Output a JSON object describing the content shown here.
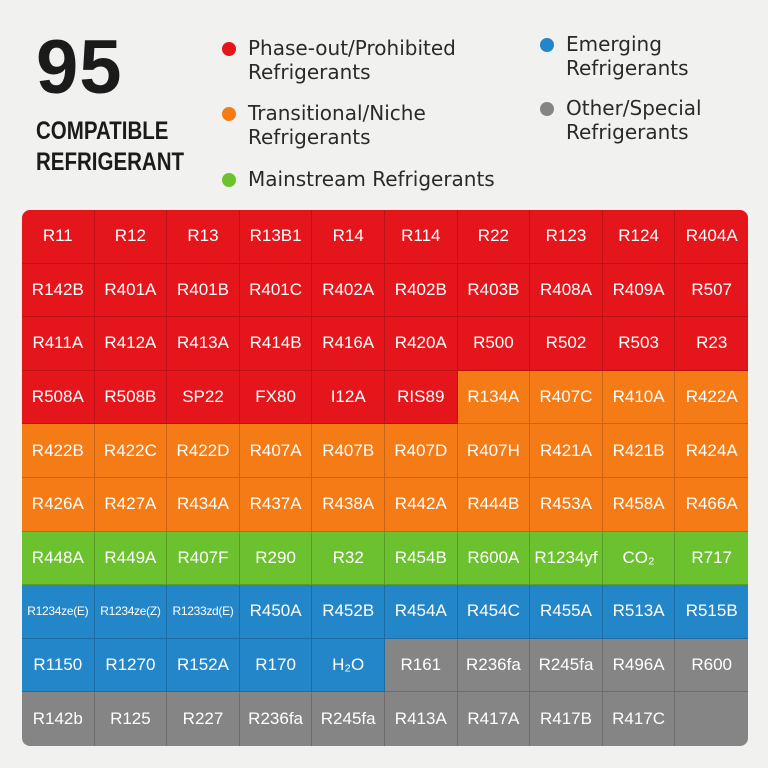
{
  "header": {
    "count": "95",
    "subtitle_line1": "COMPATIBLE",
    "subtitle_line2": "REFRIGERANT"
  },
  "colors": {
    "phaseout": "#e4161c",
    "transitional": "#f47b16",
    "mainstream": "#6cc12f",
    "emerging": "#2386c9",
    "other": "#858585"
  },
  "legend": [
    {
      "category": "phaseout",
      "label_line1": "Phase-out/Prohibited",
      "label_line2": "Refrigerants"
    },
    {
      "category": "transitional",
      "label_line1": "Transitional/Niche",
      "label_line2": "Refrigerants"
    },
    {
      "category": "mainstream",
      "label_line1": "Mainstream Refrigerants",
      "label_line2": ""
    },
    {
      "category": "emerging",
      "label_line1": "Emerging",
      "label_line2": "Refrigerants"
    },
    {
      "category": "other",
      "label_line1": "Other/Special",
      "label_line2": "Refrigerants"
    }
  ],
  "rows": [
    [
      {
        "name": "R11",
        "category": "phaseout"
      },
      {
        "name": "R12",
        "category": "phaseout"
      },
      {
        "name": "R13",
        "category": "phaseout"
      },
      {
        "name": "R13B1",
        "category": "phaseout"
      },
      {
        "name": "R14",
        "category": "phaseout"
      },
      {
        "name": "R114",
        "category": "phaseout"
      },
      {
        "name": "R22",
        "category": "phaseout"
      },
      {
        "name": "R123",
        "category": "phaseout"
      },
      {
        "name": "R124",
        "category": "phaseout"
      },
      {
        "name": "R404A",
        "category": "phaseout"
      }
    ],
    [
      {
        "name": "R142B",
        "category": "phaseout"
      },
      {
        "name": "R401A",
        "category": "phaseout"
      },
      {
        "name": "R401B",
        "category": "phaseout"
      },
      {
        "name": "R401C",
        "category": "phaseout"
      },
      {
        "name": "R402A",
        "category": "phaseout"
      },
      {
        "name": "R402B",
        "category": "phaseout"
      },
      {
        "name": "R403B",
        "category": "phaseout"
      },
      {
        "name": "R408A",
        "category": "phaseout"
      },
      {
        "name": "R409A",
        "category": "phaseout"
      },
      {
        "name": "R507",
        "category": "phaseout"
      }
    ],
    [
      {
        "name": "R411A",
        "category": "phaseout"
      },
      {
        "name": "R412A",
        "category": "phaseout"
      },
      {
        "name": "R413A",
        "category": "phaseout"
      },
      {
        "name": "R414B",
        "category": "phaseout"
      },
      {
        "name": "R416A",
        "category": "phaseout"
      },
      {
        "name": "R420A",
        "category": "phaseout"
      },
      {
        "name": "R500",
        "category": "phaseout"
      },
      {
        "name": "R502",
        "category": "phaseout"
      },
      {
        "name": "R503",
        "category": "phaseout"
      },
      {
        "name": "R23",
        "category": "phaseout"
      }
    ],
    [
      {
        "name": "R508A",
        "category": "phaseout"
      },
      {
        "name": "R508B",
        "category": "phaseout"
      },
      {
        "name": "SP22",
        "category": "phaseout"
      },
      {
        "name": "FX80",
        "category": "phaseout"
      },
      {
        "name": "I12A",
        "category": "phaseout"
      },
      {
        "name": "RIS89",
        "category": "phaseout"
      },
      {
        "name": "R134A",
        "category": "transitional"
      },
      {
        "name": "R407C",
        "category": "transitional"
      },
      {
        "name": "R410A",
        "category": "transitional"
      },
      {
        "name": "R422A",
        "category": "transitional"
      }
    ],
    [
      {
        "name": "R422B",
        "category": "transitional"
      },
      {
        "name": "R422C",
        "category": "transitional"
      },
      {
        "name": "R422D",
        "category": "transitional"
      },
      {
        "name": "R407A",
        "category": "transitional"
      },
      {
        "name": "R407B",
        "category": "transitional"
      },
      {
        "name": "R407D",
        "category": "transitional"
      },
      {
        "name": "R407H",
        "category": "transitional"
      },
      {
        "name": "R421A",
        "category": "transitional"
      },
      {
        "name": "R421B",
        "category": "transitional"
      },
      {
        "name": "R424A",
        "category": "transitional"
      }
    ],
    [
      {
        "name": "R426A",
        "category": "transitional"
      },
      {
        "name": "R427A",
        "category": "transitional"
      },
      {
        "name": "R434A",
        "category": "transitional"
      },
      {
        "name": "R437A",
        "category": "transitional"
      },
      {
        "name": "R438A",
        "category": "transitional"
      },
      {
        "name": "R442A",
        "category": "transitional"
      },
      {
        "name": "R444B",
        "category": "transitional"
      },
      {
        "name": "R453A",
        "category": "transitional"
      },
      {
        "name": "R458A",
        "category": "transitional"
      },
      {
        "name": "R466A",
        "category": "transitional"
      }
    ],
    [
      {
        "name": "R448A",
        "category": "mainstream"
      },
      {
        "name": "R449A",
        "category": "mainstream"
      },
      {
        "name": "R407F",
        "category": "mainstream"
      },
      {
        "name": "R290",
        "category": "mainstream"
      },
      {
        "name": "R32",
        "category": "mainstream"
      },
      {
        "name": "R454B",
        "category": "mainstream"
      },
      {
        "name": "R600A",
        "category": "mainstream"
      },
      {
        "name": "R1234yf",
        "category": "mainstream"
      },
      {
        "name": "CO₂",
        "category": "mainstream"
      },
      {
        "name": "R717",
        "category": "mainstream"
      }
    ],
    [
      {
        "name": "R1234ze(E)",
        "category": "emerging",
        "small": true
      },
      {
        "name": "R1234ze(Z)",
        "category": "emerging",
        "small": true
      },
      {
        "name": "R1233zd(E)",
        "category": "emerging",
        "small": true
      },
      {
        "name": "R450A",
        "category": "emerging"
      },
      {
        "name": "R452B",
        "category": "emerging"
      },
      {
        "name": "R454A",
        "category": "emerging"
      },
      {
        "name": "R454C",
        "category": "emerging"
      },
      {
        "name": "R455A",
        "category": "emerging"
      },
      {
        "name": "R513A",
        "category": "emerging"
      },
      {
        "name": "R515B",
        "category": "emerging"
      }
    ],
    [
      {
        "name": "R1150",
        "category": "emerging"
      },
      {
        "name": "R1270",
        "category": "emerging"
      },
      {
        "name": "R152A",
        "category": "emerging"
      },
      {
        "name": "R170",
        "category": "emerging"
      },
      {
        "name": "H₂O",
        "category": "emerging"
      },
      {
        "name": "R161",
        "category": "other"
      },
      {
        "name": "R236fa",
        "category": "other"
      },
      {
        "name": "R245fa",
        "category": "other"
      },
      {
        "name": "R496A",
        "category": "other"
      },
      {
        "name": "R600",
        "category": "other"
      }
    ],
    [
      {
        "name": "R142b",
        "category": "other"
      },
      {
        "name": "R125",
        "category": "other"
      },
      {
        "name": "R227",
        "category": "other"
      },
      {
        "name": "R236fa",
        "category": "other"
      },
      {
        "name": "R245fa",
        "category": "other"
      },
      {
        "name": "R413A",
        "category": "other"
      },
      {
        "name": "R417A",
        "category": "other"
      },
      {
        "name": "R417B",
        "category": "other"
      },
      {
        "name": "R417C",
        "category": "other"
      },
      {
        "name": "",
        "category": "other"
      }
    ]
  ]
}
